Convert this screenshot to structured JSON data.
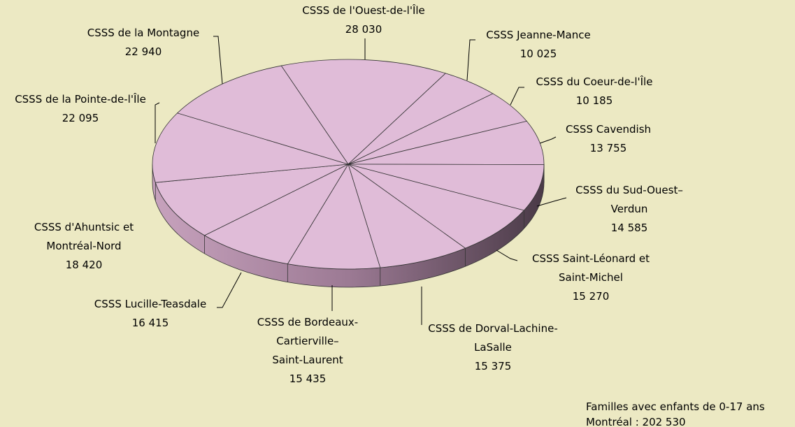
{
  "chart_data": {
    "type": "pie",
    "categories": [
      [
        "CSSS de l'Ouest-de-l'Île"
      ],
      [
        "CSSS Jeanne-Mance"
      ],
      [
        "CSSS du Coeur-de-l'Île"
      ],
      [
        "CSSS Cavendish"
      ],
      [
        "CSSS du Sud-Ouest–",
        "Verdun"
      ],
      [
        "CSSS Saint-Léonard et",
        "Saint-Michel"
      ],
      [
        "CSSS de Dorval-Lachine-",
        "LaSalle"
      ],
      [
        "CSSS de Bordeaux-",
        "Cartierville–",
        "Saint-Laurent"
      ],
      [
        "CSSS Lucille-Teasdale"
      ],
      [
        "CSSS d'Ahuntsic et",
        "Montréal-Nord"
      ],
      [
        "CSSS de la Pointe-de-l'Île"
      ],
      [
        "CSSS de la Montagne"
      ]
    ],
    "values": [
      28030,
      10025,
      10185,
      13755,
      14585,
      15270,
      15375,
      15435,
      16415,
      18420,
      22095,
      22940
    ],
    "value_labels": [
      "28 030",
      "10 025",
      "10 185",
      "13 755",
      "14 585",
      "15 270",
      "15 375",
      "15 435",
      "16 415",
      "18 420",
      "22 095",
      "22 940"
    ],
    "color": "#e0bcd8",
    "annotations": [
      "Familles avec enfants de 0-17 ans",
      "Montréal : 202 530"
    ]
  }
}
